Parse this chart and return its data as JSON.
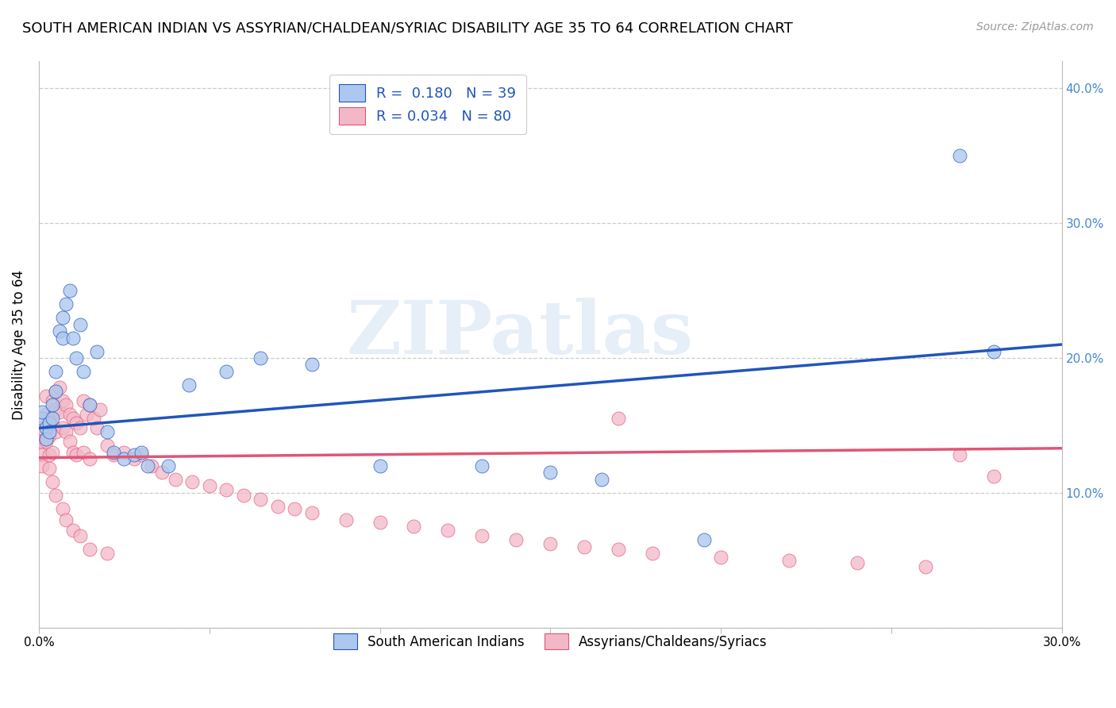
{
  "title": "SOUTH AMERICAN INDIAN VS ASSYRIAN/CHALDEAN/SYRIAC DISABILITY AGE 35 TO 64 CORRELATION CHART",
  "source": "Source: ZipAtlas.com",
  "ylabel": "Disability Age 35 to 64",
  "xlim": [
    0.0,
    0.3
  ],
  "ylim": [
    0.0,
    0.42
  ],
  "xticks": [
    0.0,
    0.05,
    0.1,
    0.15,
    0.2,
    0.25,
    0.3
  ],
  "xtick_labels": [
    "0.0%",
    "",
    "",
    "",
    "",
    "",
    "30.0%"
  ],
  "yticks": [
    0.0,
    0.1,
    0.2,
    0.3,
    0.4
  ],
  "ytick_labels_right": [
    "",
    "10.0%",
    "20.0%",
    "30.0%",
    "40.0%"
  ],
  "watermark": "ZIPatlas",
  "legend_R1": "R =  0.180",
  "legend_N1": "N = 39",
  "legend_R2": "R = 0.034",
  "legend_N2": "N = 80",
  "color_blue": "#adc8ee",
  "color_pink": "#f2b8c8",
  "color_blue_dark": "#2255bb",
  "color_pink_dark": "#e05575",
  "color_legend_text": "#2255bb",
  "blue_x": [
    0.001,
    0.001,
    0.002,
    0.002,
    0.003,
    0.003,
    0.004,
    0.004,
    0.005,
    0.005,
    0.006,
    0.007,
    0.007,
    0.008,
    0.009,
    0.01,
    0.011,
    0.012,
    0.013,
    0.015,
    0.017,
    0.02,
    0.022,
    0.025,
    0.028,
    0.03,
    0.032,
    0.038,
    0.044,
    0.055,
    0.065,
    0.08,
    0.1,
    0.13,
    0.15,
    0.165,
    0.195,
    0.27,
    0.28
  ],
  "blue_y": [
    0.155,
    0.16,
    0.148,
    0.14,
    0.152,
    0.145,
    0.165,
    0.155,
    0.19,
    0.175,
    0.22,
    0.215,
    0.23,
    0.24,
    0.25,
    0.215,
    0.2,
    0.225,
    0.19,
    0.165,
    0.205,
    0.145,
    0.13,
    0.125,
    0.128,
    0.13,
    0.12,
    0.12,
    0.18,
    0.19,
    0.2,
    0.195,
    0.12,
    0.12,
    0.115,
    0.11,
    0.065,
    0.35,
    0.205
  ],
  "pink_x": [
    0.001,
    0.001,
    0.001,
    0.002,
    0.002,
    0.002,
    0.003,
    0.003,
    0.003,
    0.004,
    0.004,
    0.004,
    0.005,
    0.005,
    0.005,
    0.006,
    0.006,
    0.007,
    0.007,
    0.008,
    0.008,
    0.009,
    0.009,
    0.01,
    0.01,
    0.011,
    0.011,
    0.012,
    0.013,
    0.013,
    0.014,
    0.015,
    0.015,
    0.016,
    0.017,
    0.018,
    0.02,
    0.022,
    0.025,
    0.028,
    0.03,
    0.033,
    0.036,
    0.04,
    0.045,
    0.05,
    0.055,
    0.06,
    0.065,
    0.07,
    0.075,
    0.08,
    0.09,
    0.1,
    0.11,
    0.12,
    0.13,
    0.14,
    0.15,
    0.16,
    0.17,
    0.18,
    0.2,
    0.22,
    0.24,
    0.26,
    0.27,
    0.28,
    0.001,
    0.002,
    0.003,
    0.004,
    0.005,
    0.007,
    0.008,
    0.01,
    0.012,
    0.015,
    0.02,
    0.17
  ],
  "pink_y": [
    0.148,
    0.138,
    0.128,
    0.172,
    0.158,
    0.14,
    0.155,
    0.142,
    0.128,
    0.168,
    0.15,
    0.13,
    0.175,
    0.162,
    0.145,
    0.178,
    0.16,
    0.168,
    0.148,
    0.165,
    0.145,
    0.158,
    0.138,
    0.155,
    0.13,
    0.152,
    0.128,
    0.148,
    0.168,
    0.13,
    0.158,
    0.165,
    0.125,
    0.155,
    0.148,
    0.162,
    0.135,
    0.128,
    0.13,
    0.125,
    0.128,
    0.12,
    0.115,
    0.11,
    0.108,
    0.105,
    0.102,
    0.098,
    0.095,
    0.09,
    0.088,
    0.085,
    0.08,
    0.078,
    0.075,
    0.072,
    0.068,
    0.065,
    0.062,
    0.06,
    0.058,
    0.055,
    0.052,
    0.05,
    0.048,
    0.045,
    0.128,
    0.112,
    0.12,
    0.138,
    0.118,
    0.108,
    0.098,
    0.088,
    0.08,
    0.072,
    0.068,
    0.058,
    0.055,
    0.155
  ],
  "blue_line_x": [
    0.0,
    0.3
  ],
  "blue_line_y": [
    0.148,
    0.21
  ],
  "pink_line_x": [
    0.0,
    0.3
  ],
  "pink_line_y": [
    0.126,
    0.133
  ]
}
